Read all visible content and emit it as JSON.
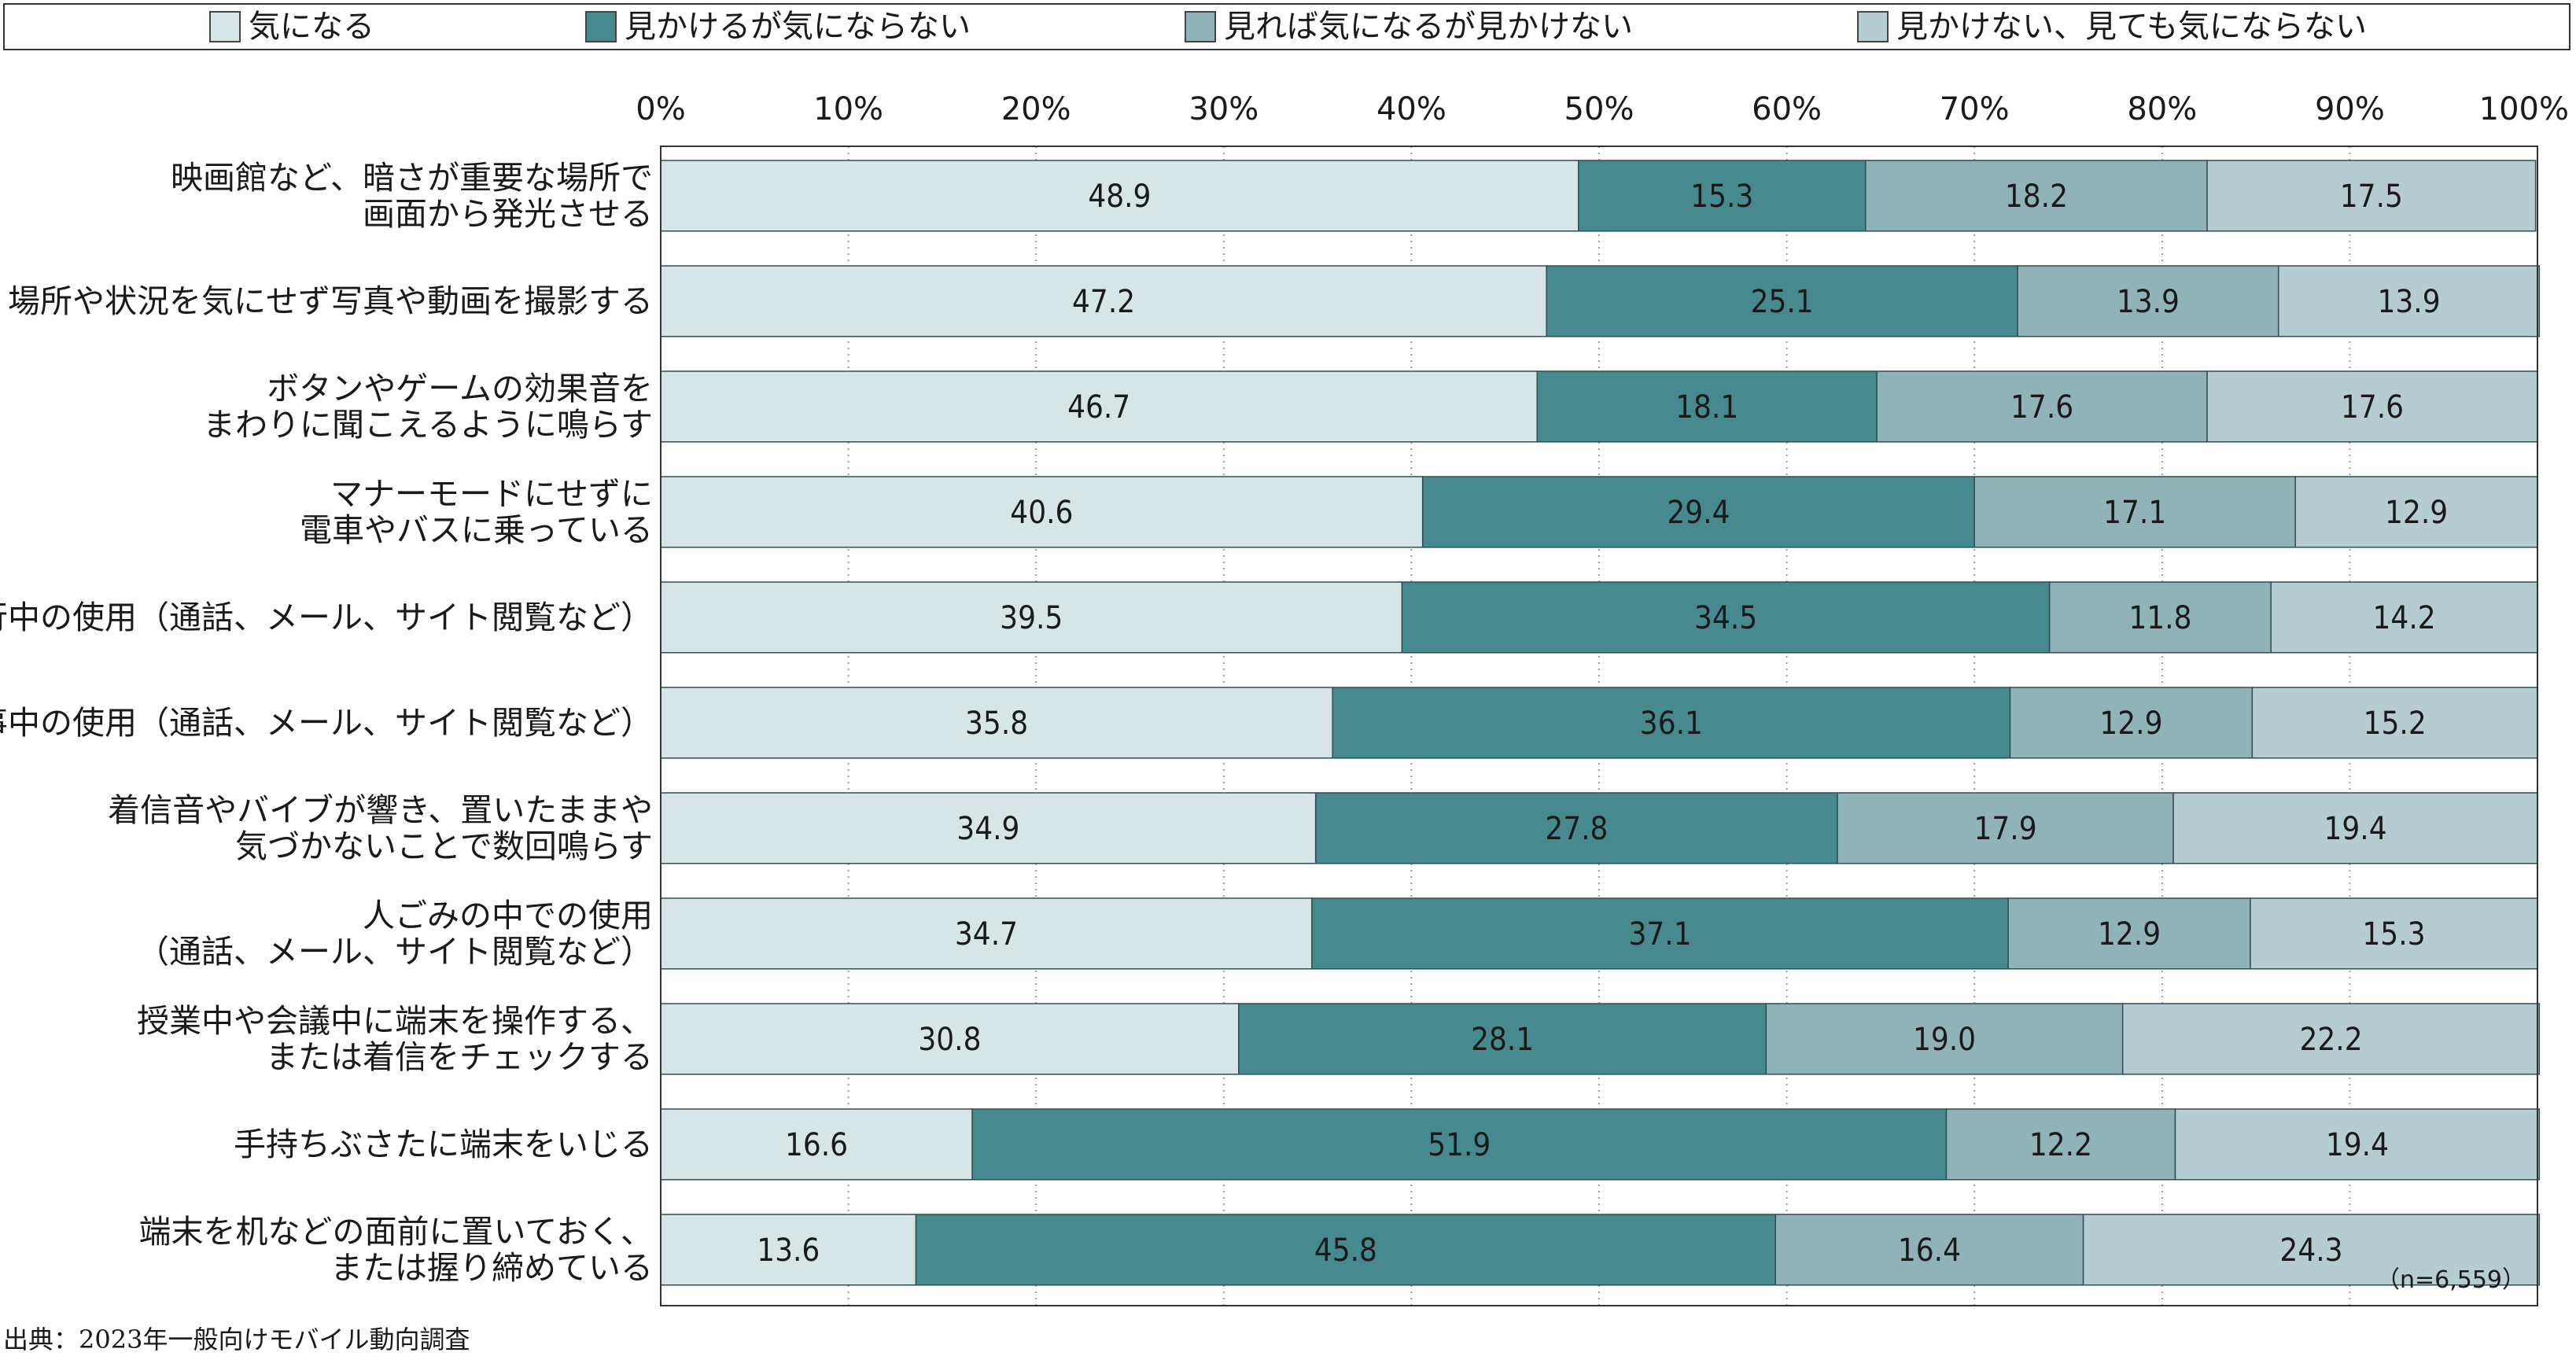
{
  "chart_data": {
    "type": "bar",
    "orientation": "horizontal",
    "stacked": true,
    "xlim": [
      0,
      100
    ],
    "xticks": [
      "0%",
      "10%",
      "20%",
      "30%",
      "40%",
      "50%",
      "60%",
      "70%",
      "80%",
      "90%",
      "100%"
    ],
    "grid": "dotted vertical",
    "legend_position": "top",
    "categories": [
      [
        "映画館など、暗さが重要な場所で",
        "画面から発光させる"
      ],
      [
        "場所や状況を気にせず写真や動画を撮影する"
      ],
      [
        "ボタンやゲームの効果音を",
        "まわりに聞こえるように鳴らす"
      ],
      [
        "マナーモードにせずに",
        "電車やバスに乗っている"
      ],
      [
        "歩行中の使用（通話、メール、サイト閲覧など）"
      ],
      [
        "食事中の使用（通話、メール、サイト閲覧など）"
      ],
      [
        "着信音やバイブが響き、置いたままや",
        "気づかないことで数回鳴らす"
      ],
      [
        "人ごみの中での使用",
        "（通話、メール、サイト閲覧など）"
      ],
      [
        "授業中や会議中に端末を操作する、",
        "または着信をチェックする"
      ],
      [
        "手持ちぶさたに端末をいじる"
      ],
      [
        "端末を机などの面前に置いておく、",
        "または握り締めている"
      ]
    ],
    "series": [
      {
        "name": "気になる",
        "color": "#d8e5e6",
        "values": [
          48.9,
          47.2,
          46.7,
          40.6,
          39.5,
          35.8,
          34.9,
          34.7,
          30.8,
          16.6,
          13.6
        ],
        "labels": [
          "48.9",
          "47.2",
          "46.7",
          "40.6",
          "39.5",
          "35.8",
          "34.9",
          "34.7",
          "30.8",
          "16.6",
          "13.6"
        ]
      },
      {
        "name": "見かけるが気にならない",
        "color": "#468a90",
        "values": [
          15.3,
          25.1,
          18.1,
          29.4,
          34.5,
          36.1,
          27.8,
          37.1,
          28.1,
          51.9,
          45.8
        ],
        "labels": [
          "15.3",
          "25.1",
          "18.1",
          "29.4",
          "34.5",
          "36.1",
          "27.8",
          "37.1",
          "28.1",
          "51.9",
          "45.8"
        ]
      },
      {
        "name": "見れば気になるが見かけない",
        "color": "#8fb3b6",
        "values": [
          18.2,
          13.9,
          17.6,
          17.1,
          11.8,
          12.9,
          17.9,
          12.9,
          19.0,
          12.2,
          16.4
        ],
        "labels": [
          "18.2",
          "13.9",
          "17.6",
          "17.1",
          "11.8",
          "12.9",
          "17.9",
          "12.9",
          "19.0",
          "12.2",
          "16.4"
        ]
      },
      {
        "name": "見かけない、見ても気にならない",
        "color": "#b5cdd0",
        "values": [
          17.5,
          13.9,
          17.6,
          12.9,
          14.2,
          15.2,
          19.4,
          15.3,
          22.2,
          19.4,
          24.3
        ],
        "labels": [
          "17.5",
          "13.9",
          "17.6",
          "12.9",
          "14.2",
          "15.2",
          "19.4",
          "15.3",
          "22.2",
          "19.4",
          "24.3"
        ]
      }
    ],
    "note": "（n=6,559）",
    "source": "出典：2023年一般向けモバイル動向調査"
  }
}
